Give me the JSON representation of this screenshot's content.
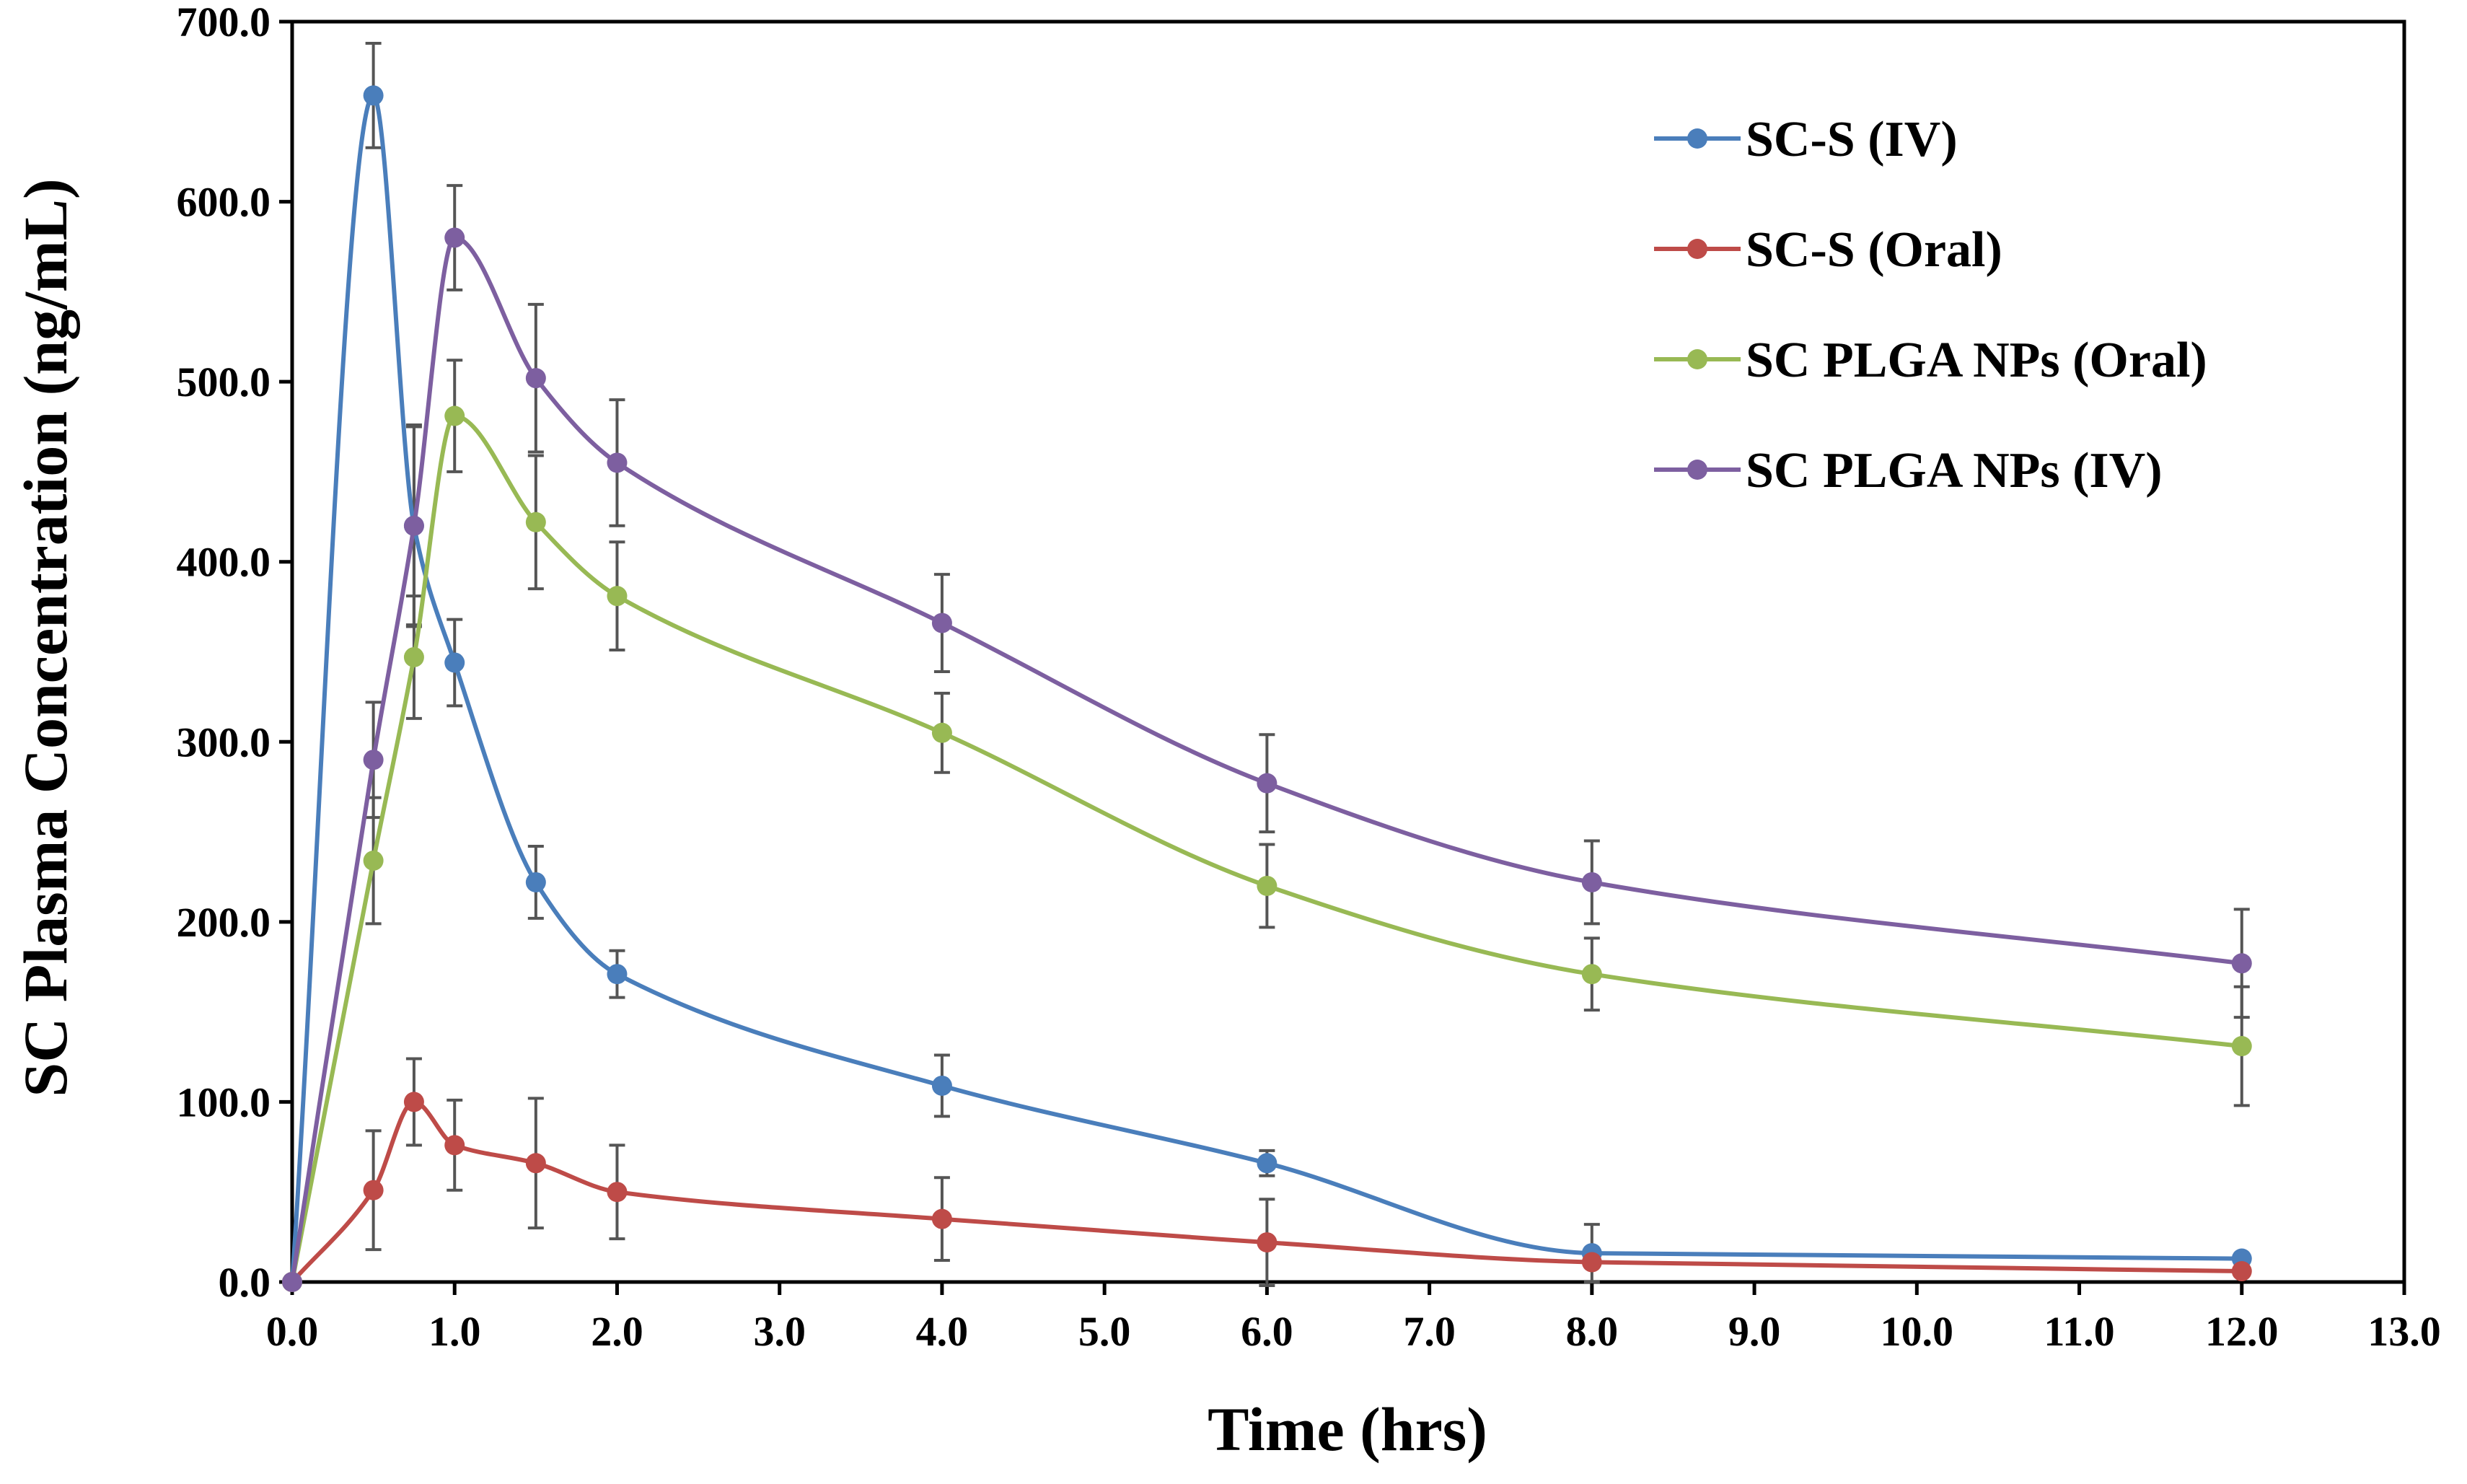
{
  "chart_data": {
    "type": "line",
    "title": "",
    "xlabel": "Time  (hrs)",
    "ylabel": "SC Plasma  Concentration (ng/mL)",
    "xlim": [
      0,
      13
    ],
    "ylim": [
      0,
      700
    ],
    "x_ticks": [
      0,
      1,
      2,
      3,
      4,
      5,
      6,
      7,
      8,
      9,
      10,
      11,
      12,
      13
    ],
    "x_tick_labels": [
      "0.0",
      "1.0",
      "2.0",
      "3.0",
      "4.0",
      "5.0",
      "6.0",
      "7.0",
      "8.0",
      "9.0",
      "10.0",
      "11.0",
      "12.0",
      "13.0"
    ],
    "y_ticks": [
      0,
      100,
      200,
      300,
      400,
      500,
      600,
      700
    ],
    "y_tick_labels": [
      "0.0",
      "100.0",
      "200.0",
      "300.0",
      "400.0",
      "500.0",
      "600.0",
      "700.0"
    ],
    "grid": false,
    "legend_position": "top-right",
    "series": [
      {
        "name": "SC-S (IV)",
        "color": "#4a7ebb",
        "x": [
          0,
          0.5,
          0.75,
          1,
          1.5,
          2,
          4,
          6,
          8,
          12
        ],
        "values": [
          0,
          659,
          420,
          344,
          222,
          171,
          109,
          66,
          16,
          13
        ],
        "errors": [
          0,
          29,
          56,
          24,
          20,
          13,
          17,
          7,
          16,
          0
        ]
      },
      {
        "name": "SC-S (Oral)",
        "color": "#be4b48",
        "x": [
          0,
          0.5,
          0.75,
          1,
          1.5,
          2,
          4,
          6,
          8,
          12
        ],
        "values": [
          0,
          51,
          100,
          76,
          66,
          50,
          35,
          22,
          11,
          6
        ],
        "errors": [
          0,
          33,
          24,
          25,
          36,
          26,
          23,
          24,
          0,
          0
        ]
      },
      {
        "name": "SC PLGA NPs (Oral)",
        "color": "#98b954",
        "x": [
          0,
          0.5,
          0.75,
          1,
          1.5,
          2,
          4,
          6,
          8,
          12
        ],
        "values": [
          0,
          234,
          347,
          481,
          422,
          381,
          305,
          220,
          171,
          131
        ],
        "errors": [
          0,
          35,
          34,
          31,
          37,
          30,
          22,
          23,
          20,
          33
        ]
      },
      {
        "name": "SC PLGA NPs (IV)",
        "color": "#7d5fa0",
        "x": [
          0,
          0.5,
          0.75,
          1,
          1.5,
          2,
          4,
          6,
          8,
          12
        ],
        "values": [
          0,
          290,
          420,
          580,
          502,
          455,
          366,
          277,
          222,
          177
        ],
        "errors": [
          0,
          32,
          55,
          29,
          41,
          35,
          27,
          27,
          23,
          30
        ]
      }
    ]
  }
}
